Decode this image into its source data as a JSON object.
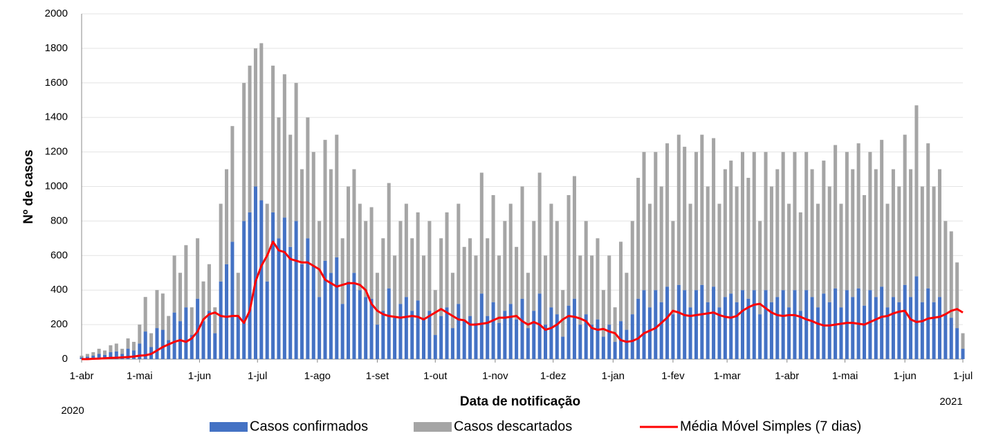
{
  "chart_data": {
    "type": "bar",
    "stacked": true,
    "grid": true,
    "ylabel": "Nº de casos",
    "xlabel": "Data de notificação",
    "year_labels": [
      "2020",
      "2021"
    ],
    "legend": "bottom",
    "xlim": [
      0,
      456
    ],
    "ylim": [
      0,
      2000
    ],
    "yticks": [
      0,
      200,
      400,
      600,
      800,
      1000,
      1200,
      1400,
      1600,
      1800,
      2000
    ],
    "xticks": [
      {
        "value": 0,
        "label": "1-abr"
      },
      {
        "value": 30,
        "label": "1-mai"
      },
      {
        "value": 61,
        "label": "1-jun"
      },
      {
        "value": 91,
        "label": "1-jul"
      },
      {
        "value": 122,
        "label": "1-ago"
      },
      {
        "value": 153,
        "label": "1-set"
      },
      {
        "value": 183,
        "label": "1-out"
      },
      {
        "value": 214,
        "label": "1-nov"
      },
      {
        "value": 244,
        "label": "1-dez"
      },
      {
        "value": 275,
        "label": "1-jan"
      },
      {
        "value": 306,
        "label": "1-fev"
      },
      {
        "value": 334,
        "label": "1-mar"
      },
      {
        "value": 365,
        "label": "1-abr"
      },
      {
        "value": 395,
        "label": "1-mai"
      },
      {
        "value": 426,
        "label": "1-jun"
      },
      {
        "value": 456,
        "label": "1-jul"
      }
    ],
    "x": [
      0,
      3,
      6,
      9,
      12,
      15,
      18,
      21,
      24,
      27,
      30,
      33,
      36,
      39,
      42,
      45,
      48,
      51,
      54,
      57,
      60,
      63,
      66,
      69,
      72,
      75,
      78,
      81,
      84,
      87,
      90,
      93,
      96,
      99,
      102,
      105,
      108,
      111,
      114,
      117,
      120,
      123,
      126,
      129,
      132,
      135,
      138,
      141,
      144,
      147,
      150,
      153,
      156,
      159,
      162,
      165,
      168,
      171,
      174,
      177,
      180,
      183,
      186,
      189,
      192,
      195,
      198,
      201,
      204,
      207,
      210,
      213,
      216,
      219,
      222,
      225,
      228,
      231,
      234,
      237,
      240,
      243,
      246,
      249,
      252,
      255,
      258,
      261,
      264,
      267,
      270,
      273,
      276,
      279,
      282,
      285,
      288,
      291,
      294,
      297,
      300,
      303,
      306,
      309,
      312,
      315,
      318,
      321,
      324,
      327,
      330,
      333,
      336,
      339,
      342,
      345,
      348,
      351,
      354,
      357,
      360,
      363,
      366,
      369,
      372,
      375,
      378,
      381,
      384,
      387,
      390,
      393,
      396,
      399,
      402,
      405,
      408,
      411,
      414,
      417,
      420,
      423,
      426,
      429,
      432,
      435,
      438,
      441,
      444,
      447,
      450,
      453,
      456
    ],
    "series": [
      {
        "name": "Casos confirmados",
        "type": "bar",
        "color": "#4472c4",
        "values": [
          10,
          15,
          20,
          30,
          25,
          40,
          45,
          30,
          60,
          50,
          90,
          160,
          70,
          180,
          170,
          110,
          270,
          220,
          300,
          140,
          350,
          220,
          280,
          150,
          450,
          550,
          680,
          250,
          800,
          850,
          1000,
          920,
          450,
          850,
          700,
          820,
          650,
          800,
          550,
          700,
          540,
          360,
          570,
          500,
          590,
          320,
          450,
          500,
          400,
          360,
          350,
          200,
          280,
          410,
          240,
          320,
          360,
          280,
          340,
          240,
          280,
          140,
          250,
          300,
          180,
          320,
          230,
          250,
          210,
          380,
          250,
          330,
          210,
          280,
          320,
          230,
          350,
          180,
          280,
          380,
          200,
          300,
          260,
          130,
          310,
          350,
          200,
          260,
          200,
          230,
          130,
          200,
          100,
          220,
          170,
          260,
          350,
          400,
          300,
          400,
          330,
          420,
          260,
          430,
          400,
          300,
          400,
          430,
          330,
          420,
          300,
          360,
          380,
          330,
          400,
          350,
          400,
          260,
          400,
          330,
          360,
          400,
          300,
          400,
          280,
          400,
          360,
          300,
          380,
          330,
          410,
          300,
          400,
          360,
          410,
          310,
          400,
          360,
          420,
          300,
          360,
          330,
          430,
          360,
          480,
          330,
          410,
          330,
          360,
          260,
          240,
          180,
          60
        ]
      },
      {
        "name": "Casos descartados",
        "type": "bar",
        "color": "#a5a5a5",
        "values": [
          10,
          15,
          20,
          30,
          25,
          40,
          45,
          30,
          60,
          50,
          110,
          200,
          80,
          220,
          210,
          140,
          330,
          280,
          360,
          160,
          350,
          230,
          270,
          150,
          450,
          550,
          670,
          250,
          800,
          850,
          800,
          910,
          450,
          850,
          700,
          830,
          650,
          800,
          550,
          700,
          660,
          440,
          700,
          600,
          710,
          380,
          550,
          600,
          500,
          440,
          530,
          300,
          420,
          610,
          360,
          480,
          540,
          420,
          510,
          360,
          520,
          260,
          450,
          550,
          320,
          580,
          420,
          450,
          390,
          700,
          450,
          620,
          390,
          520,
          580,
          420,
          650,
          320,
          520,
          700,
          400,
          600,
          540,
          270,
          640,
          710,
          400,
          540,
          400,
          470,
          270,
          400,
          200,
          460,
          330,
          540,
          700,
          800,
          600,
          800,
          670,
          830,
          540,
          870,
          830,
          600,
          800,
          870,
          670,
          860,
          600,
          740,
          770,
          670,
          800,
          700,
          800,
          540,
          800,
          670,
          740,
          800,
          600,
          800,
          570,
          800,
          740,
          600,
          770,
          670,
          830,
          600,
          800,
          740,
          840,
          640,
          800,
          740,
          850,
          600,
          740,
          670,
          870,
          740,
          990,
          670,
          840,
          670,
          740,
          540,
          500,
          380,
          90
        ]
      },
      {
        "name": "Média Móvel Simples (7 dias)",
        "type": "line",
        "color": "#ff0000",
        "values": [
          0,
          0,
          2,
          3,
          5,
          7,
          8,
          10,
          12,
          15,
          20,
          22,
          30,
          50,
          70,
          85,
          100,
          110,
          100,
          120,
          160,
          230,
          260,
          270,
          250,
          245,
          250,
          250,
          210,
          280,
          450,
          540,
          600,
          680,
          630,
          620,
          580,
          570,
          560,
          560,
          540,
          520,
          460,
          440,
          420,
          430,
          440,
          440,
          430,
          400,
          320,
          280,
          260,
          250,
          245,
          240,
          245,
          250,
          245,
          230,
          250,
          270,
          290,
          270,
          250,
          230,
          225,
          200,
          200,
          205,
          210,
          225,
          240,
          240,
          245,
          250,
          220,
          200,
          215,
          200,
          170,
          180,
          200,
          230,
          250,
          245,
          235,
          220,
          180,
          170,
          175,
          160,
          150,
          110,
          100,
          105,
          120,
          150,
          165,
          180,
          210,
          240,
          280,
          270,
          255,
          250,
          255,
          260,
          265,
          270,
          255,
          245,
          240,
          250,
          280,
          300,
          315,
          320,
          295,
          270,
          255,
          250,
          255,
          255,
          245,
          230,
          220,
          205,
          195,
          195,
          200,
          205,
          210,
          210,
          205,
          200,
          215,
          230,
          245,
          250,
          265,
          275,
          280,
          230,
          215,
          220,
          235,
          240,
          245,
          260,
          280,
          290,
          270
        ]
      }
    ]
  }
}
